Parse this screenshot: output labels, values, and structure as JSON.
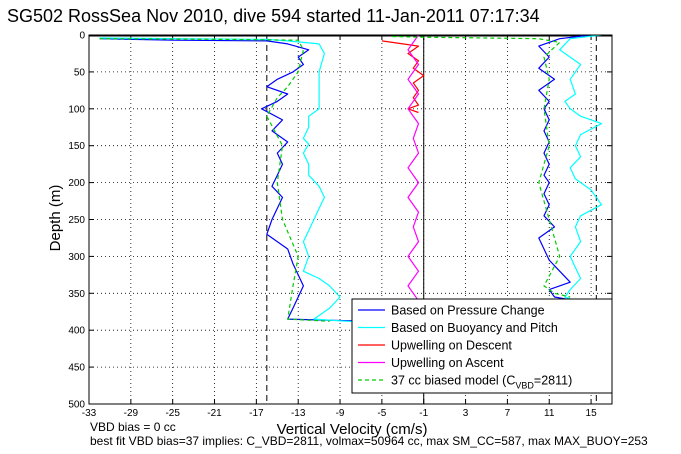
{
  "chart_data": {
    "type": "line",
    "title": "SG502 RossSea Nov 2010, dive 594 started 11-Jan-2011 07:17:34",
    "xlabel": "Vertical Velocity (cm/s)",
    "ylabel": "Depth (m)",
    "xlim": [
      -33,
      17
    ],
    "ylim": [
      0,
      500
    ],
    "y_reversed": true,
    "grid": "dotted",
    "x_ticks": [
      "-33",
      "-29",
      "-25",
      "-21",
      "-17",
      "-13",
      "-9",
      "-5",
      "-1",
      "3",
      "7",
      "11",
      "15"
    ],
    "y_ticks": [
      "0",
      "50",
      "100",
      "150",
      "200",
      "250",
      "300",
      "350",
      "400",
      "450",
      "500"
    ],
    "legend": {
      "placement": "bottom-right",
      "entries": [
        {
          "label": "Based on Pressure Change",
          "color": "#0000ff",
          "dash": false
        },
        {
          "label": "Based on Buoyancy and Pitch",
          "color": "#00ffff",
          "dash": false
        },
        {
          "label": "Upwelling on Descent",
          "color": "#ff0000",
          "dash": false
        },
        {
          "label": "Upwelling on Ascent",
          "color": "#ff00ff",
          "dash": false
        },
        {
          "label_main": "37 cc biased model (C",
          "label_sub": "VBD",
          "label_tail": "=2811)",
          "color": "#00cc00",
          "dash": true
        }
      ]
    },
    "reference_lines": {
      "vertical_solid": [
        -1
      ],
      "vertical_dashed": [
        -16,
        15.5
      ],
      "horizontal_solid": [
        0
      ]
    },
    "series": [
      {
        "name": "Based on Pressure Change",
        "color": "#0000ff",
        "segments": [
          {
            "x": [
              -32,
              -25,
              -16,
              -14,
              -12,
              -13,
              -12.5,
              -13.5,
              -15,
              -16,
              -14,
              -15,
              -16.5,
              -14.5,
              -15.5,
              -14,
              -15,
              -14.5,
              -15,
              -15.5,
              -14.5,
              -15,
              -15.5,
              -16,
              -14,
              -13.5,
              -13,
              -12.5,
              -13,
              -13.5,
              -14,
              -6
            ],
            "y": [
              5,
              7,
              8,
              12,
              20,
              30,
              40,
              50,
              60,
              70,
              80,
              90,
              100,
              115,
              130,
              145,
              160,
              175,
              190,
              205,
              220,
              235,
              250,
              270,
              290,
              310,
              325,
              340,
              355,
              370,
              385,
              388
            ]
          },
          {
            "x": [
              15,
              12,
              10,
              11,
              10,
              11.5,
              10,
              11,
              10.5,
              11,
              10.5,
              11,
              10.5,
              11,
              10.5,
              11,
              10.5,
              11,
              10.5,
              11.5,
              10,
              10.5,
              11,
              12,
              13,
              11,
              11.5,
              13.5
            ],
            "y": [
              0,
              5,
              15,
              30,
              45,
              60,
              75,
              90,
              100,
              115,
              130,
              145,
              160,
              175,
              190,
              200,
              215,
              230,
              245,
              260,
              275,
              290,
              305,
              320,
              335,
              345,
              355,
              360
            ]
          }
        ]
      },
      {
        "name": "Based on Buoyancy and Pitch",
        "color": "#00ffff",
        "segments": [
          {
            "x": [
              -32,
              -24,
              -16,
              -14,
              -11,
              -10.5,
              -11,
              -11,
              -12,
              -12,
              -12.5,
              -12,
              -12.5,
              -12,
              -12,
              -11,
              -10.5,
              -11,
              -11.5,
              -12,
              -12.5,
              -12,
              -12.5,
              -11,
              -10,
              -9,
              -10,
              -11.5,
              -6
            ],
            "y": [
              4,
              5,
              6,
              8,
              12,
              25,
              50,
              100,
              110,
              125,
              140,
              148,
              160,
              175,
              190,
              205,
              220,
              235,
              250,
              265,
              280,
              300,
              320,
              330,
              340,
              355,
              370,
              385,
              390
            ]
          },
          {
            "x": [
              16,
              13,
              12,
              14,
              13,
              13.5,
              12.5,
              13,
              14,
              16,
              14,
              13.5,
              14,
              13,
              13.5,
              15,
              16,
              14,
              13.5,
              14,
              13,
              13.5,
              14,
              13,
              12.5,
              14.5
            ],
            "y": [
              0,
              5,
              20,
              40,
              60,
              80,
              90,
              100,
              110,
              120,
              135,
              150,
              165,
              180,
              195,
              210,
              230,
              245,
              260,
              280,
              300,
              315,
              330,
              345,
              355,
              365
            ]
          }
        ]
      },
      {
        "name": "Upwelling on Descent",
        "color": "#ff0000",
        "segments": [
          {
            "x": [
              -5,
              -1.5,
              -2.5,
              -1.5,
              -2,
              -1,
              -2,
              -1.5,
              -2,
              -1.5,
              -2.5,
              -1.5
            ],
            "y": [
              8,
              15,
              25,
              35,
              45,
              55,
              65,
              75,
              85,
              95,
              100,
              105
            ]
          }
        ]
      },
      {
        "name": "Upwelling on Ascent",
        "color": "#ff00ff",
        "segments": [
          {
            "x": [
              -1.5,
              -2.5,
              -1.5,
              -2.5,
              -1.5,
              -2.5,
              -1.5,
              -2,
              -1.5,
              -2.5,
              -1.5,
              -2.5,
              -1.5,
              -2,
              -1.5,
              -2.5,
              -1.5,
              -2.5,
              -1.5
            ],
            "y": [
              0,
              20,
              40,
              60,
              80,
              100,
              120,
              140,
              160,
              180,
              200,
              220,
              240,
              260,
              280,
              300,
              320,
              340,
              360
            ]
          }
        ]
      },
      {
        "name": "37 cc biased model (CVBD=2811)",
        "color": "#00cc00",
        "dash": true,
        "segments": [
          {
            "x": [
              -32,
              -20,
              -13,
              -12.5,
              -13,
              -14,
              -15,
              -16,
              -14.5,
              -15,
              -14.5,
              -13,
              -13.5,
              -14,
              -10
            ],
            "y": [
              5,
              6,
              7,
              20,
              50,
              70,
              85,
              110,
              150,
              200,
              250,
              300,
              340,
              385,
              388
            ]
          },
          {
            "x": [
              -4,
              -1,
              5,
              10,
              12,
              10.5,
              11,
              10.5,
              11,
              10,
              11,
              12,
              10.5,
              11.5,
              13
            ],
            "y": [
              2,
              3,
              4,
              5,
              10,
              30,
              60,
              100,
              150,
              200,
              250,
              300,
              340,
              350,
              355
            ]
          }
        ]
      }
    ]
  },
  "notes": {
    "line1": "VBD bias = 0 cc",
    "line2": "best fit VBD bias=37 implies: C_VBD=2811, volmax=50964 cc, max SM_CC=587, max MAX_BUOY=253"
  }
}
